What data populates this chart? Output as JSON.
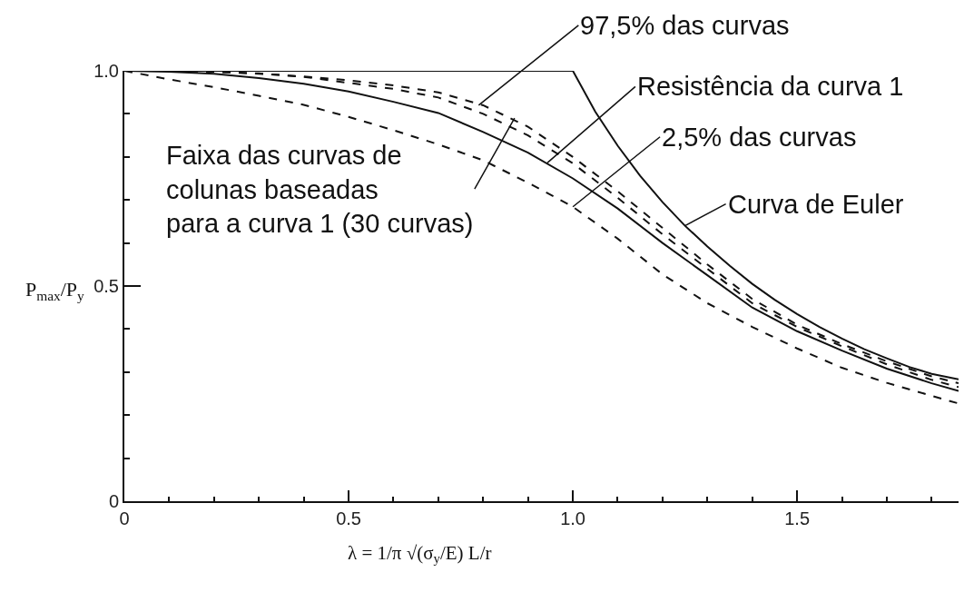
{
  "chart_data": {
    "type": "line",
    "xlabel": "λ = 1/π √(σ$_{y}$/E) L/r",
    "ylabel": "P$_{max}$/P$_{y}$",
    "xlim": [
      0,
      1.86
    ],
    "xticks": [
      0,
      {
        "value": 0.1,
        "label": null
      },
      {
        "value": 0.2,
        "label": null
      },
      {
        "value": 0.3,
        "label": null
      },
      {
        "value": 0.4,
        "label": null
      },
      0.5,
      {
        "value": 0.6,
        "label": null
      },
      {
        "value": 0.7,
        "label": null
      },
      {
        "value": 0.8,
        "label": null
      },
      {
        "value": 0.9,
        "label": null
      },
      {
        "value": 1,
        "label": "1.0"
      },
      {
        "value": 1.1,
        "label": null
      },
      {
        "value": 1.2,
        "label": null
      },
      {
        "value": 1.3,
        "label": null
      },
      {
        "value": 1.4,
        "label": null
      },
      1.5,
      {
        "value": 1.6,
        "label": null
      },
      {
        "value": 1.7,
        "label": null
      },
      {
        "value": 1.8,
        "label": null
      }
    ],
    "ylim": [
      0,
      1
    ],
    "yticks": [
      0,
      {
        "value": 0.1,
        "label": null
      },
      {
        "value": 0.2,
        "label": null
      },
      {
        "value": 0.3,
        "label": null
      },
      {
        "value": 0.4,
        "label": null
      },
      0.5,
      {
        "value": 0.6,
        "label": null
      },
      {
        "value": 0.7,
        "label": null
      },
      {
        "value": 0.8,
        "label": null
      },
      {
        "value": 0.9,
        "label": null
      },
      {
        "value": 1,
        "label": "1.0"
      }
    ],
    "x": [
      0,
      0.1,
      0.2,
      0.3,
      0.4,
      0.5,
      0.6,
      0.7,
      0.8,
      0.9,
      1.0,
      1.1,
      1.2,
      1.3,
      1.4,
      1.5,
      1.6,
      1.7,
      1.8,
      1.86
    ],
    "series": [
      {
        "color": "#111111",
        "line_style": "solid",
        "x": [
          0,
          1,
          1.05,
          1.1,
          1.15,
          1.2,
          1.25,
          1.3,
          1.35,
          1.4,
          1.45,
          1.5,
          1.55,
          1.6,
          1.65,
          1.7,
          1.75,
          1.8,
          1.86
        ],
        "values": [
          1,
          1,
          0.905,
          0.826,
          0.756,
          0.695,
          0.64,
          0.592,
          0.547,
          0.505,
          0.468,
          0.435,
          0.405,
          0.378,
          0.353,
          0.332,
          0.312,
          0.296,
          0.283
        ]
      },
      {
        "color": "#111111",
        "line_style": "dashed",
        "values": [
          1,
          1,
          0.998,
          0.993,
          0.987,
          0.978,
          0.966,
          0.95,
          0.92,
          0.87,
          0.8,
          0.72,
          0.635,
          0.55,
          0.47,
          0.41,
          0.365,
          0.325,
          0.29,
          0.274
        ]
      },
      {
        "color": "#111111",
        "line_style": "dashed",
        "values": [
          1,
          1,
          0.998,
          0.994,
          0.986,
          0.972,
          0.958,
          0.938,
          0.9,
          0.85,
          0.785,
          0.705,
          0.62,
          0.54,
          0.46,
          0.405,
          0.36,
          0.318,
          0.282,
          0.265
        ]
      },
      {
        "color": "#111111",
        "line_style": "solid",
        "values": [
          1,
          0.998,
          0.993,
          0.983,
          0.97,
          0.952,
          0.928,
          0.902,
          0.858,
          0.81,
          0.75,
          0.68,
          0.6,
          0.525,
          0.45,
          0.395,
          0.35,
          0.308,
          0.274,
          0.256
        ]
      },
      {
        "color": "#111111",
        "line_style": "dashed",
        "values": [
          1,
          0.98,
          0.962,
          0.942,
          0.921,
          0.893,
          0.862,
          0.829,
          0.792,
          0.74,
          0.684,
          0.61,
          0.527,
          0.46,
          0.405,
          0.355,
          0.31,
          0.275,
          0.245,
          0.227
        ]
      }
    ],
    "annotations": [
      {
        "text": "97,5% das curvas",
        "x": 0.79,
        "y": 0.92
      },
      {
        "text": "Resistência da curva 1",
        "x": 0.943,
        "y": 0.786
      },
      {
        "text": "2,5% das curvas",
        "x": 1.0,
        "y": 0.684
      },
      {
        "text": "Curva de Euler",
        "x": 1.25,
        "y": 0.64
      },
      {
        "text": "Faixa das curvas de\ncolunas baseadas\npara a curva 1 (30 curvas)",
        "x": 0.87,
        "y": 0.89
      }
    ]
  }
}
